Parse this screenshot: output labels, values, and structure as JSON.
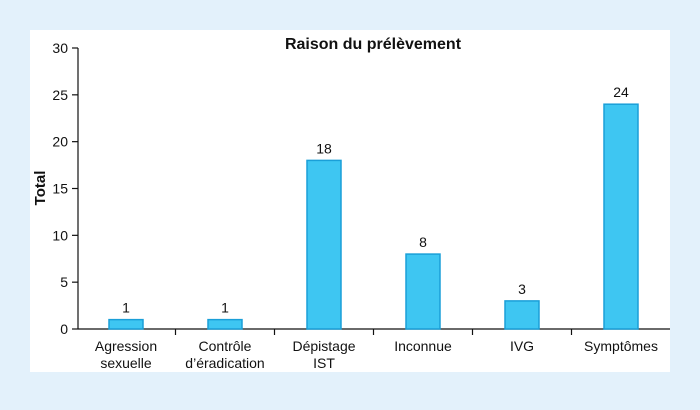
{
  "chart_data": {
    "type": "bar",
    "title": "Raison du prélèvement",
    "ylabel": "Total",
    "xlabel": "",
    "categories": [
      [
        "Agression",
        "sexuelle"
      ],
      [
        "Contrôle",
        "d’éradication"
      ],
      [
        "Dépistage",
        "IST"
      ],
      [
        "Inconnue"
      ],
      [
        "IVG"
      ],
      [
        "Symptômes"
      ]
    ],
    "values": [
      1,
      1,
      18,
      8,
      3,
      24
    ],
    "ylim": [
      0,
      30
    ],
    "yticks": [
      0,
      5,
      10,
      15,
      20,
      25,
      30
    ],
    "grid": false,
    "legend": "none",
    "colors": {
      "bar_fill": "#3ec6f2",
      "bar_stroke": "#1a9fd8",
      "plot_background": "#ffffff",
      "frame_background": "#e3f1fb",
      "axis": "#111111"
    }
  }
}
